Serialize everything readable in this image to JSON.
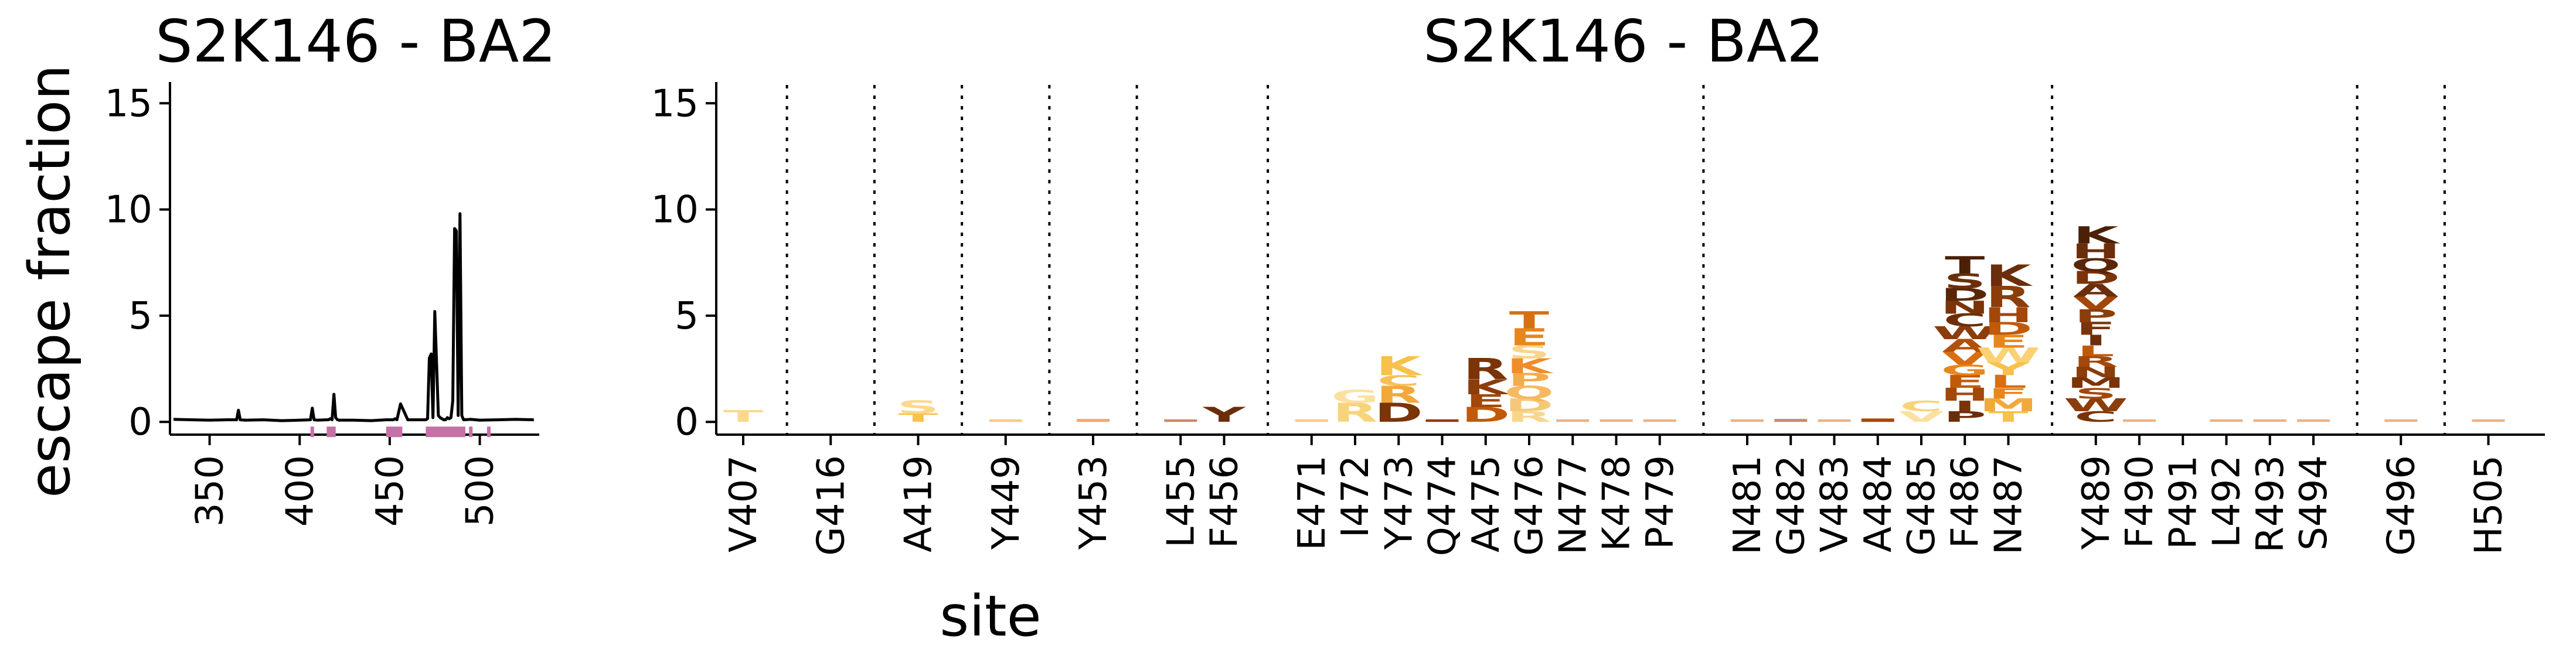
{
  "panel_left": {
    "title": "S2K146 - BA2",
    "ylabel": "escape fraction",
    "xlabel": "site"
  },
  "panel_right": {
    "title": "S2K146 - BA2"
  },
  "chart_data": [
    {
      "type": "line",
      "title": "S2K146 - BA2",
      "xlabel": "site",
      "ylabel": "escape fraction",
      "xlim": [
        328,
        533
      ],
      "ylim": [
        -0.6,
        16
      ],
      "xticks": [
        350,
        400,
        450,
        500
      ],
      "yticks": [
        0,
        5,
        10,
        15
      ],
      "series": [
        {
          "x": [
            330,
            340,
            350,
            360,
            365,
            366,
            367,
            370,
            380,
            390,
            400,
            406,
            407,
            408,
            410,
            415,
            416,
            417,
            418,
            419,
            420,
            421,
            422,
            430,
            440,
            448,
            449,
            450,
            452,
            453,
            454,
            456,
            460,
            465,
            470,
            471,
            472,
            473,
            474,
            475,
            476,
            477,
            478,
            479,
            480,
            481,
            482,
            483,
            484,
            485,
            486,
            487,
            488,
            489,
            490,
            491,
            495,
            500,
            510,
            520,
            530
          ],
          "y": [
            0.12,
            0.1,
            0.08,
            0.1,
            0.1,
            0.55,
            0.1,
            0.08,
            0.1,
            0.06,
            0.08,
            0.1,
            0.65,
            0.1,
            0.08,
            0.1,
            0.1,
            0.15,
            0.1,
            1.3,
            0.2,
            0.1,
            0.08,
            0.08,
            0.06,
            0.1,
            0.1,
            0.1,
            0.1,
            0.15,
            0.1,
            0.85,
            0.1,
            0.1,
            0.1,
            0.15,
            3.0,
            3.2,
            0.2,
            5.2,
            2.8,
            0.3,
            0.2,
            0.15,
            0.1,
            0.1,
            0.2,
            0.15,
            0.2,
            1.0,
            9.1,
            9.0,
            0.3,
            9.8,
            0.3,
            0.1,
            0.12,
            0.08,
            0.1,
            0.12,
            0.1
          ]
        }
      ],
      "highlight_sites": [
        {
          "from": 406,
          "to": 408
        },
        {
          "from": 415,
          "to": 420
        },
        {
          "from": 448,
          "to": 457
        },
        {
          "from": 470,
          "to": 492
        },
        {
          "from": 494,
          "to": 496
        },
        {
          "from": 504,
          "to": 506
        }
      ],
      "highlight_color": "#c471a6"
    },
    {
      "type": "logo",
      "title": "S2K146 - BA2",
      "ylim": [
        -0.6,
        16
      ],
      "yticks": [
        0,
        5,
        10,
        15
      ],
      "sites": [
        "V407",
        "G416",
        "A419",
        "Y449",
        "Y453",
        "L455",
        "F456",
        "E471",
        "I472",
        "Y473",
        "Q474",
        "A475",
        "G476",
        "N477",
        "K478",
        "P479",
        "N481",
        "G482",
        "V483",
        "A484",
        "G485",
        "F486",
        "N487",
        "Y489",
        "F490",
        "P491",
        "L492",
        "R493",
        "S494",
        "G496",
        "H505"
      ],
      "separators_after": [
        "V407",
        "G416",
        "A419",
        "Y449",
        "Y453",
        "F456",
        "P479",
        "N487",
        "S494",
        "G496"
      ],
      "letters": [
        {
          "site": "V407",
          "stack": [
            {
              "aa": "T",
              "h": 0.55,
              "color": "#fdd88a"
            }
          ]
        },
        {
          "site": "A419",
          "stack": [
            {
              "aa": "T",
              "h": 0.4,
              "color": "#f7c14c"
            },
            {
              "aa": "S",
              "h": 0.6,
              "color": "#fdd88a"
            }
          ]
        },
        {
          "site": "F456",
          "stack": [
            {
              "aa": "Y",
              "h": 0.7,
              "color": "#6b2e0a"
            }
          ]
        },
        {
          "site": "I472",
          "stack": [
            {
              "aa": "R",
              "h": 0.9,
              "color": "#f7d47c"
            },
            {
              "aa": "G",
              "h": 0.6,
              "color": "#fbe1a0"
            }
          ]
        },
        {
          "site": "Y473",
          "stack": [
            {
              "aa": "D",
              "h": 0.9,
              "color": "#7a3408"
            },
            {
              "aa": "R",
              "h": 0.8,
              "color": "#f2a93b"
            },
            {
              "aa": "C",
              "h": 0.5,
              "color": "#f5c05a"
            },
            {
              "aa": "K",
              "h": 0.9,
              "color": "#f7c14c"
            }
          ]
        },
        {
          "site": "A475",
          "stack": [
            {
              "aa": "D",
              "h": 0.7,
              "color": "#c05a08"
            },
            {
              "aa": "E",
              "h": 0.6,
              "color": "#a2480a"
            },
            {
              "aa": "K",
              "h": 0.7,
              "color": "#8b3d0a"
            },
            {
              "aa": "R",
              "h": 1.0,
              "color": "#7a3408"
            }
          ]
        },
        {
          "site": "G476",
          "stack": [
            {
              "aa": "R",
              "h": 0.5,
              "color": "#f9d58c"
            },
            {
              "aa": "D",
              "h": 0.6,
              "color": "#f7c779"
            },
            {
              "aa": "Q",
              "h": 0.6,
              "color": "#f6b960"
            },
            {
              "aa": "P",
              "h": 0.6,
              "color": "#f4ab4b"
            },
            {
              "aa": "K",
              "h": 0.7,
              "color": "#f08c2a"
            },
            {
              "aa": "S",
              "h": 0.6,
              "color": "#f9d58c"
            },
            {
              "aa": "E",
              "h": 0.8,
              "color": "#e8861e"
            },
            {
              "aa": "T",
              "h": 0.8,
              "color": "#d86f12"
            }
          ]
        },
        {
          "site": "G485",
          "stack": [
            {
              "aa": "V",
              "h": 0.5,
              "color": "#fbe1a0"
            },
            {
              "aa": "C",
              "h": 0.5,
              "color": "#f7d47c"
            }
          ]
        },
        {
          "site": "F486",
          "stack": [
            {
              "aa": "P",
              "h": 0.5,
              "color": "#6b2e0a"
            },
            {
              "aa": "I",
              "h": 0.5,
              "color": "#7a3408"
            },
            {
              "aa": "H",
              "h": 0.6,
              "color": "#a2480a"
            },
            {
              "aa": "E",
              "h": 0.6,
              "color": "#c05a08"
            },
            {
              "aa": "G",
              "h": 0.5,
              "color": "#e8861e"
            },
            {
              "aa": "V",
              "h": 0.6,
              "color": "#d86f12"
            },
            {
              "aa": "A",
              "h": 0.6,
              "color": "#b0500a"
            },
            {
              "aa": "W",
              "h": 0.6,
              "color": "#8b3d0a"
            },
            {
              "aa": "C",
              "h": 0.6,
              "color": "#6b2e0a"
            },
            {
              "aa": "N",
              "h": 0.6,
              "color": "#7a3408"
            },
            {
              "aa": "D",
              "h": 0.6,
              "color": "#5a2608"
            },
            {
              "aa": "S",
              "h": 0.7,
              "color": "#6b2e0a"
            },
            {
              "aa": "T",
              "h": 0.8,
              "color": "#4a2006"
            }
          ]
        },
        {
          "site": "N487",
          "stack": [
            {
              "aa": "T",
              "h": 0.5,
              "color": "#f7c14c"
            },
            {
              "aa": "M",
              "h": 0.6,
              "color": "#f2a93b"
            },
            {
              "aa": "F",
              "h": 0.5,
              "color": "#e8861e"
            },
            {
              "aa": "L",
              "h": 0.6,
              "color": "#d86f12"
            },
            {
              "aa": "Y",
              "h": 0.6,
              "color": "#f7c14c"
            },
            {
              "aa": "W",
              "h": 0.7,
              "color": "#fbd176"
            },
            {
              "aa": "E",
              "h": 0.6,
              "color": "#e8861e"
            },
            {
              "aa": "D",
              "h": 0.6,
              "color": "#c05a08"
            },
            {
              "aa": "H",
              "h": 0.7,
              "color": "#a2480a"
            },
            {
              "aa": "R",
              "h": 1.0,
              "color": "#8b3d0a"
            },
            {
              "aa": "K",
              "h": 1.0,
              "color": "#6b2e0a"
            }
          ]
        },
        {
          "site": "Y489",
          "stack": [
            {
              "aa": "C",
              "h": 0.5,
              "color": "#7a3408"
            },
            {
              "aa": "W",
              "h": 0.6,
              "color": "#8b3d0a"
            },
            {
              "aa": "S",
              "h": 0.5,
              "color": "#a2480a"
            },
            {
              "aa": "M",
              "h": 0.5,
              "color": "#7a3408"
            },
            {
              "aa": "N",
              "h": 0.5,
              "color": "#8b3d0a"
            },
            {
              "aa": "R",
              "h": 0.5,
              "color": "#a2480a"
            },
            {
              "aa": "L",
              "h": 0.5,
              "color": "#c05a08"
            },
            {
              "aa": "I",
              "h": 0.5,
              "color": "#6b2e0a"
            },
            {
              "aa": "F",
              "h": 0.6,
              "color": "#7a3408"
            },
            {
              "aa": "P",
              "h": 0.6,
              "color": "#8b3d0a"
            },
            {
              "aa": "V",
              "h": 0.6,
              "color": "#a2480a"
            },
            {
              "aa": "A",
              "h": 0.6,
              "color": "#6b2e0a"
            },
            {
              "aa": "D",
              "h": 0.6,
              "color": "#7a3408"
            },
            {
              "aa": "Q",
              "h": 0.6,
              "color": "#5a2608"
            },
            {
              "aa": "H",
              "h": 0.7,
              "color": "#6b2e0a"
            },
            {
              "aa": "K",
              "h": 0.8,
              "color": "#4a2006"
            }
          ]
        }
      ],
      "baseline_traces": [
        {
          "site": "Y449",
          "h": 0.12,
          "color": "#f6c98a"
        },
        {
          "site": "Y453",
          "h": 0.14,
          "color": "#f6a66a"
        },
        {
          "site": "L455",
          "h": 0.12,
          "color": "#c98a6a"
        },
        {
          "site": "E471",
          "h": 0.12,
          "color": "#f6c98a"
        },
        {
          "site": "Q474",
          "h": 0.12,
          "color": "#8b3d0a"
        },
        {
          "site": "N477",
          "h": 0.12,
          "color": "#e8b28a"
        },
        {
          "site": "K478",
          "h": 0.12,
          "color": "#e8b28a"
        },
        {
          "site": "P479",
          "h": 0.12,
          "color": "#e8b28a"
        },
        {
          "site": "N481",
          "h": 0.12,
          "color": "#e8b28a"
        },
        {
          "site": "G482",
          "h": 0.14,
          "color": "#c98a6a"
        },
        {
          "site": "V483",
          "h": 0.12,
          "color": "#e8b28a"
        },
        {
          "site": "A484",
          "h": 0.16,
          "color": "#a2480a"
        },
        {
          "site": "F490",
          "h": 0.12,
          "color": "#e8b28a"
        },
        {
          "site": "L492",
          "h": 0.12,
          "color": "#e8b28a"
        },
        {
          "site": "R493",
          "h": 0.12,
          "color": "#e8b28a"
        },
        {
          "site": "S494",
          "h": 0.12,
          "color": "#e8b28a"
        },
        {
          "site": "G496",
          "h": 0.12,
          "color": "#e8b28a"
        },
        {
          "site": "H505",
          "h": 0.12,
          "color": "#e8b28a"
        }
      ]
    }
  ]
}
